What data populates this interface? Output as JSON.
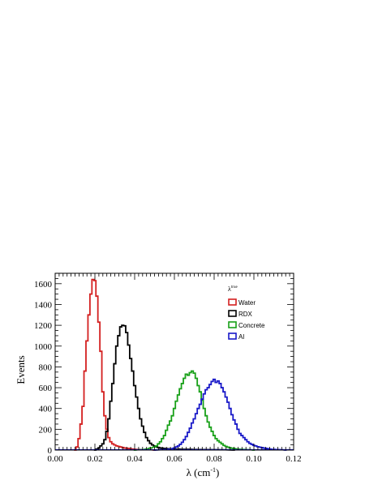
{
  "chart_data": {
    "type": "line",
    "title": "",
    "xlabel": "λ (cm",
    "xlabel_sup": "-1",
    "xlabel_close": ")",
    "ylabel": "Events",
    "xlim": [
      0.0,
      0.12
    ],
    "ylim": [
      0,
      1700
    ],
    "x_ticks": [
      "0.00",
      "0.02",
      "0.04",
      "0.06",
      "0.08",
      "0.10",
      "0.12"
    ],
    "y_ticks": [
      "0",
      "200",
      "400",
      "600",
      "800",
      "1000",
      "1200",
      "1400",
      "1600"
    ],
    "grid": false,
    "legend": {
      "placement": "top-right",
      "header": "λ",
      "header_sup": "true"
    },
    "bin_width": 0.001,
    "series": [
      {
        "name": "Water",
        "color": "#d42020",
        "x": [
          0.01,
          0.011,
          0.012,
          0.013,
          0.014,
          0.015,
          0.016,
          0.017,
          0.018,
          0.019,
          0.02,
          0.021,
          0.022,
          0.023,
          0.024,
          0.025,
          0.026,
          0.027,
          0.028,
          0.029,
          0.03,
          0.031,
          0.032,
          0.033,
          0.034,
          0.035,
          0.036,
          0.037,
          0.038,
          0.039,
          0.04,
          0.042,
          0.044,
          0.046,
          0.048,
          0.05
        ],
        "values": [
          0,
          30,
          110,
          250,
          420,
          760,
          1050,
          1300,
          1500,
          1640,
          1630,
          1480,
          1230,
          950,
          560,
          330,
          200,
          120,
          80,
          60,
          50,
          40,
          35,
          30,
          25,
          20,
          18,
          15,
          12,
          10,
          8,
          6,
          5,
          4,
          3,
          0
        ]
      },
      {
        "name": "RDX",
        "color": "#000000",
        "x": [
          0.02,
          0.021,
          0.022,
          0.023,
          0.024,
          0.025,
          0.026,
          0.027,
          0.028,
          0.029,
          0.03,
          0.031,
          0.032,
          0.033,
          0.034,
          0.035,
          0.036,
          0.037,
          0.038,
          0.039,
          0.04,
          0.041,
          0.042,
          0.043,
          0.044,
          0.045,
          0.046,
          0.047,
          0.048,
          0.049,
          0.05,
          0.051,
          0.052,
          0.053,
          0.054,
          0.055,
          0.056,
          0.058,
          0.06,
          0.062,
          0.064,
          0.066,
          0.068,
          0.07,
          0.075,
          0.08,
          0.085,
          0.09
        ],
        "values": [
          0,
          10,
          20,
          40,
          60,
          100,
          180,
          300,
          470,
          640,
          830,
          1000,
          1100,
          1185,
          1200,
          1195,
          1130,
          1010,
          880,
          760,
          620,
          510,
          400,
          300,
          230,
          170,
          120,
          90,
          65,
          50,
          40,
          30,
          25,
          20,
          18,
          15,
          14,
          12,
          10,
          10,
          8,
          8,
          8,
          6,
          5,
          4,
          3,
          0
        ]
      },
      {
        "name": "Concrete",
        "color": "#18a018",
        "x": [
          0.04,
          0.042,
          0.044,
          0.046,
          0.048,
          0.05,
          0.051,
          0.052,
          0.053,
          0.054,
          0.055,
          0.056,
          0.057,
          0.058,
          0.059,
          0.06,
          0.061,
          0.062,
          0.063,
          0.064,
          0.065,
          0.066,
          0.067,
          0.068,
          0.069,
          0.07,
          0.071,
          0.072,
          0.073,
          0.074,
          0.075,
          0.076,
          0.077,
          0.078,
          0.079,
          0.08,
          0.081,
          0.082,
          0.083,
          0.084,
          0.085,
          0.086,
          0.087,
          0.088,
          0.089,
          0.09,
          0.092,
          0.094,
          0.096,
          0.098,
          0.1
        ],
        "values": [
          0,
          3,
          5,
          10,
          20,
          30,
          40,
          60,
          80,
          110,
          140,
          190,
          240,
          280,
          330,
          400,
          470,
          530,
          590,
          640,
          690,
          730,
          720,
          745,
          760,
          740,
          690,
          620,
          560,
          480,
          400,
          330,
          270,
          220,
          180,
          140,
          110,
          90,
          75,
          60,
          45,
          35,
          28,
          22,
          18,
          15,
          10,
          7,
          5,
          3,
          0
        ]
      },
      {
        "name": "Al",
        "color": "#1818c8",
        "x": [
          0.05,
          0.055,
          0.058,
          0.06,
          0.061,
          0.062,
          0.063,
          0.064,
          0.065,
          0.066,
          0.067,
          0.068,
          0.069,
          0.07,
          0.071,
          0.072,
          0.073,
          0.074,
          0.075,
          0.076,
          0.077,
          0.078,
          0.079,
          0.08,
          0.081,
          0.082,
          0.083,
          0.084,
          0.085,
          0.086,
          0.087,
          0.088,
          0.089,
          0.09,
          0.091,
          0.092,
          0.093,
          0.094,
          0.095,
          0.096,
          0.097,
          0.098,
          0.099,
          0.1,
          0.101,
          0.102,
          0.103,
          0.104,
          0.105,
          0.106,
          0.107,
          0.108,
          0.11,
          0.112,
          0.114,
          0.116
        ],
        "values": [
          0,
          5,
          10,
          20,
          30,
          40,
          55,
          75,
          100,
          130,
          170,
          210,
          260,
          300,
          350,
          400,
          440,
          490,
          540,
          580,
          600,
          630,
          660,
          680,
          650,
          665,
          640,
          600,
          560,
          510,
          460,
          400,
          340,
          290,
          250,
          200,
          160,
          140,
          120,
          100,
          80,
          65,
          55,
          45,
          40,
          32,
          28,
          24,
          20,
          16,
          13,
          10,
          7,
          5,
          3,
          0
        ]
      }
    ]
  }
}
